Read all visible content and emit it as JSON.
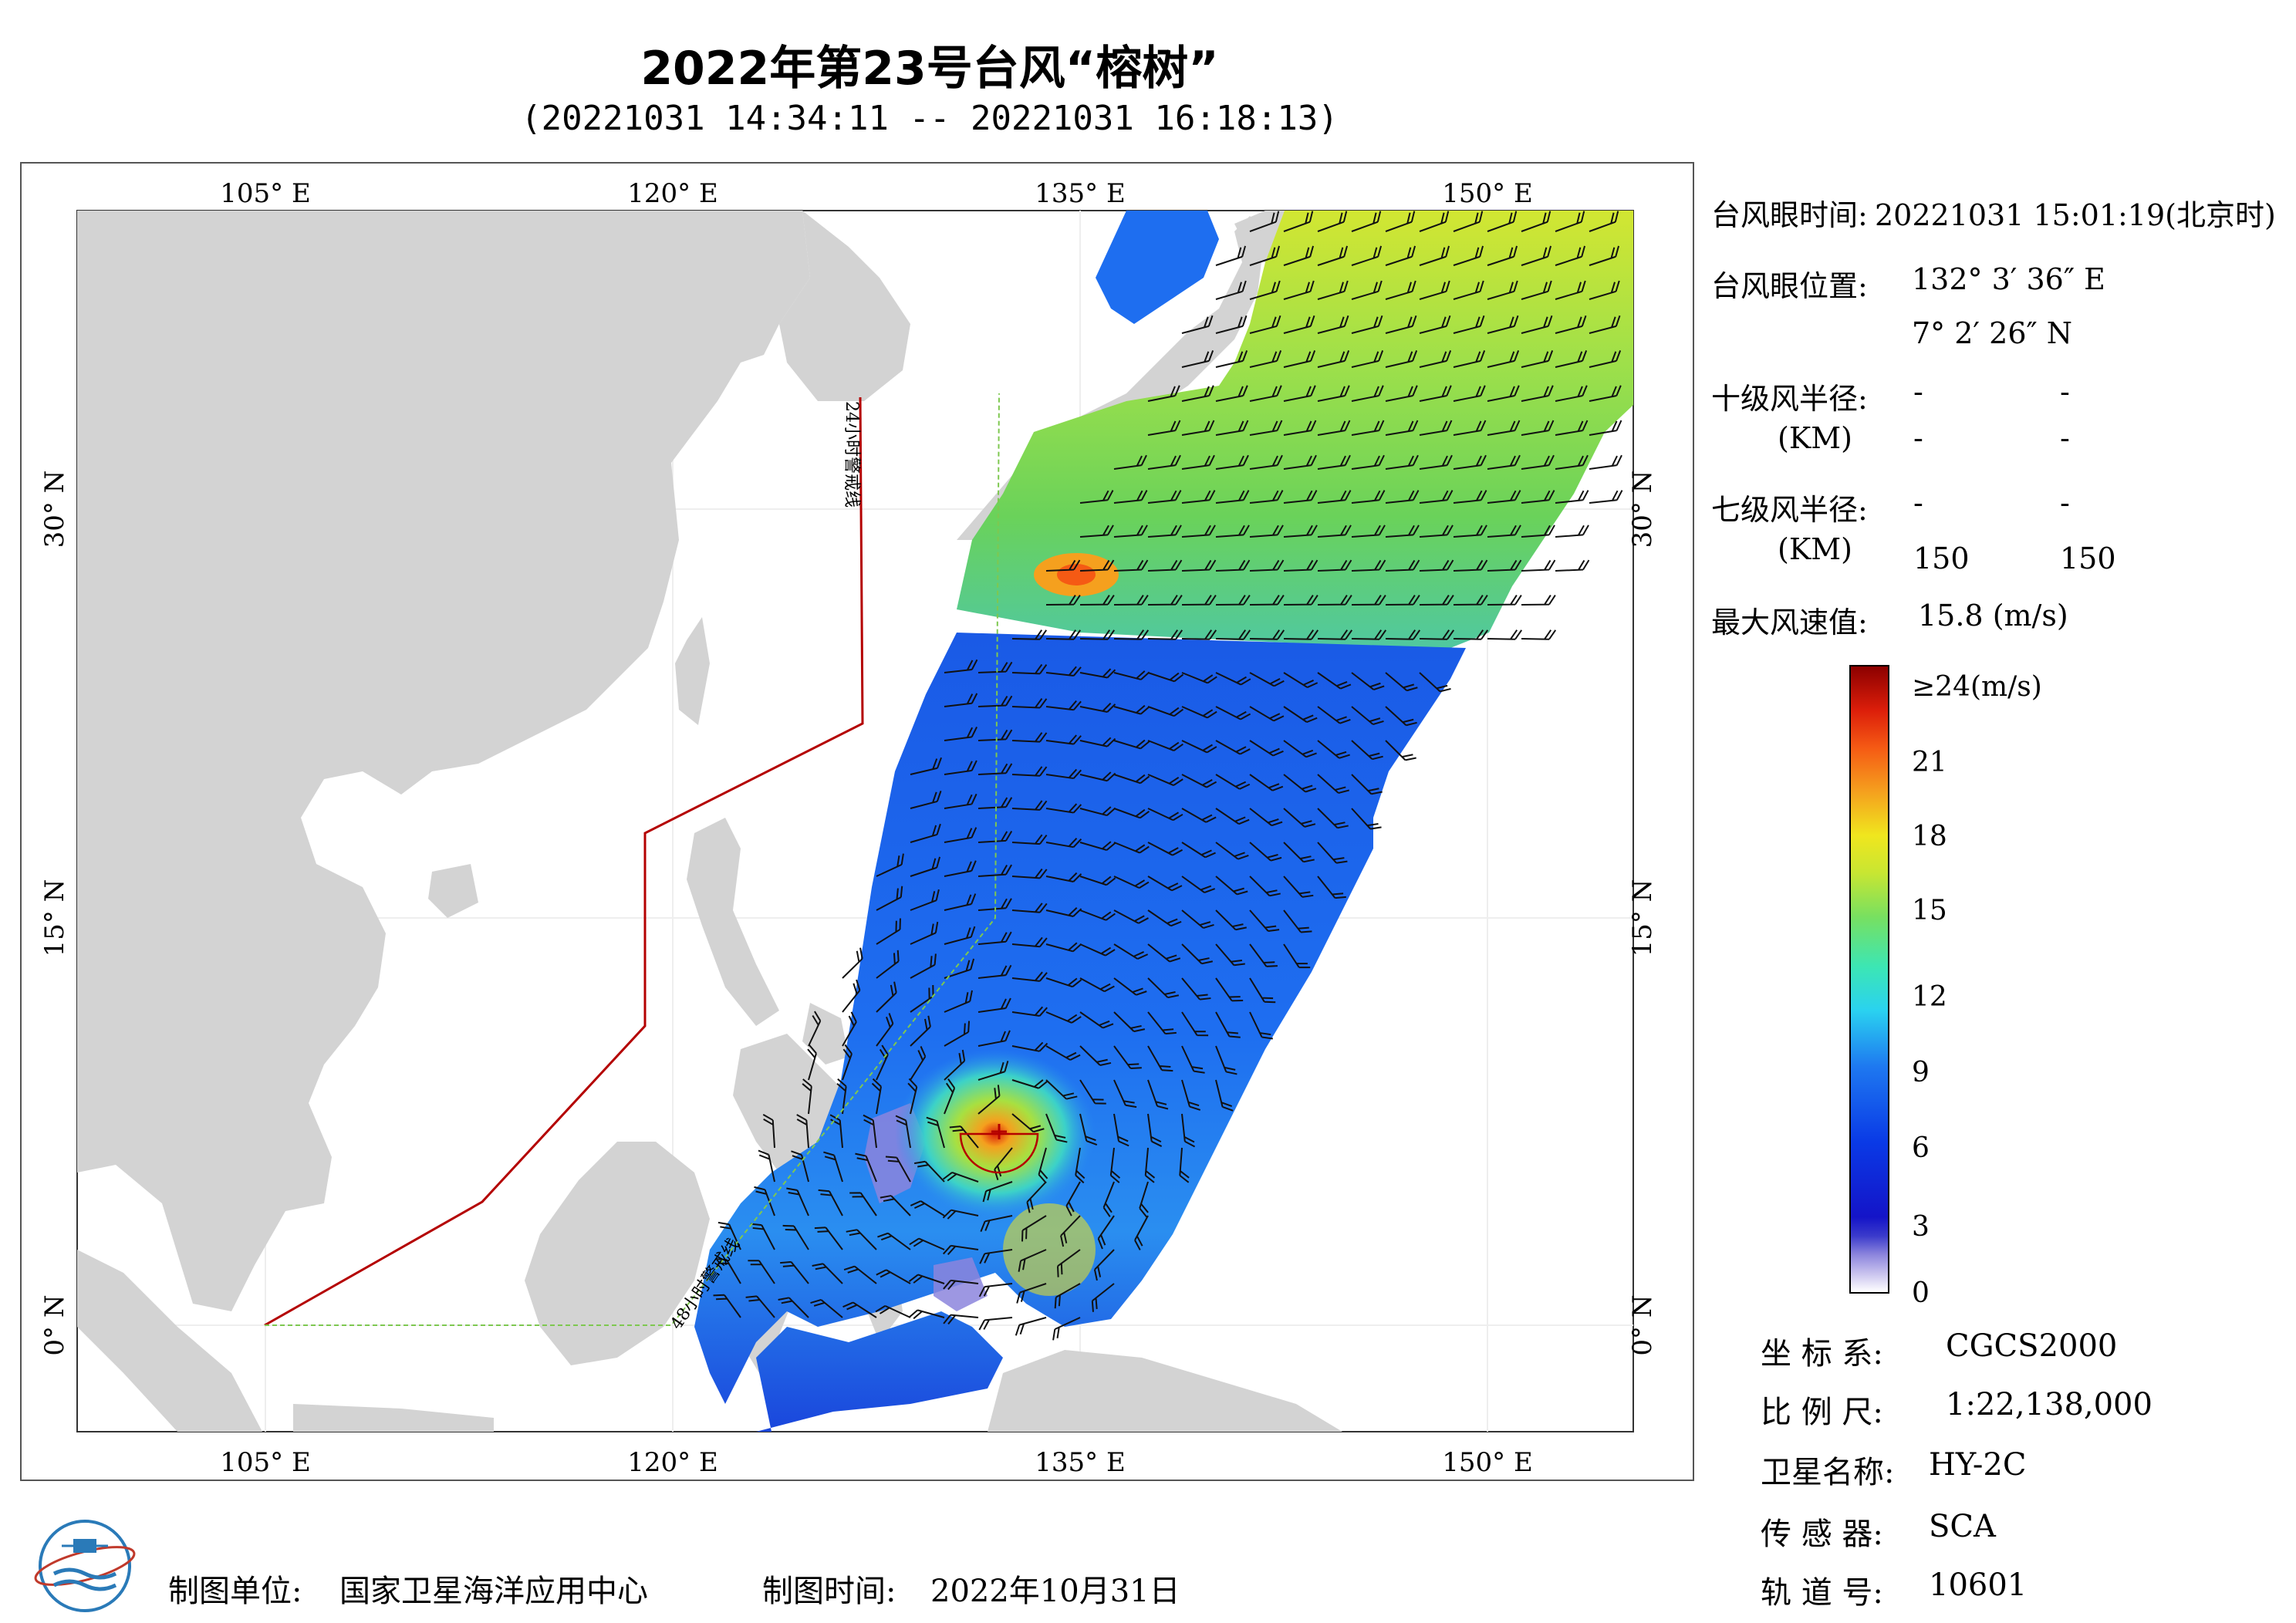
{
  "title": "2022年第23号台风“榕树”",
  "subtitle": "(20221031 14:34:11 -- 20221031 16:18:13)",
  "map": {
    "lon_ticks": [
      "105° E",
      "120° E",
      "135° E",
      "150° E"
    ],
    "lat_ticks": [
      "30° N",
      "15° N",
      "0° N"
    ],
    "line_labels": {
      "warning_24h": "24小时警戒线",
      "warning_48h": "48小时警戒线"
    },
    "colors": {
      "land": "#d3d3d3",
      "ocean": "#ffffff",
      "warning_24h_line": "#b40000",
      "warning_48h_line": "#7ec850"
    }
  },
  "info": {
    "eye_time_label": "台风眼时间:",
    "eye_time_value": "20221031 15:01:19(北京时)",
    "eye_pos_label": "台风眼位置:",
    "eye_lon": "132° 3′ 36″ E",
    "eye_lat": "7° 2′ 26″ N",
    "r10_label": "十级风半径:",
    "r10_unit": "(KM)",
    "r10_values": [
      "-",
      "-",
      "-",
      "-"
    ],
    "r7_label": "七级风半径:",
    "r7_unit": "(KM)",
    "r7_values": [
      "-",
      "-",
      "150",
      "150"
    ],
    "max_wind_label": "最大风速值:",
    "max_wind_value": "15.8  (m/s)"
  },
  "colorbar": {
    "labels": [
      "≥24(m/s)",
      "21",
      "18",
      "15",
      "12",
      "9",
      "6",
      "3",
      "0"
    ]
  },
  "meta": {
    "crs_label": "坐 标 系:",
    "crs_value": "CGCS2000",
    "scale_label": "比 例 尺:",
    "scale_value": "1:22,138,000",
    "satellite_label": "卫星名称:",
    "satellite_value": "HY-2C",
    "sensor_label": "传 感 器:",
    "sensor_value": "SCA",
    "orbit_label": "轨 道 号:",
    "orbit_value": "10601"
  },
  "footer": {
    "producer_label": "制图单位:",
    "producer_value": "国家卫星海洋应用中心",
    "date_label": "制图时间:",
    "date_value": "2022年10月31日"
  }
}
